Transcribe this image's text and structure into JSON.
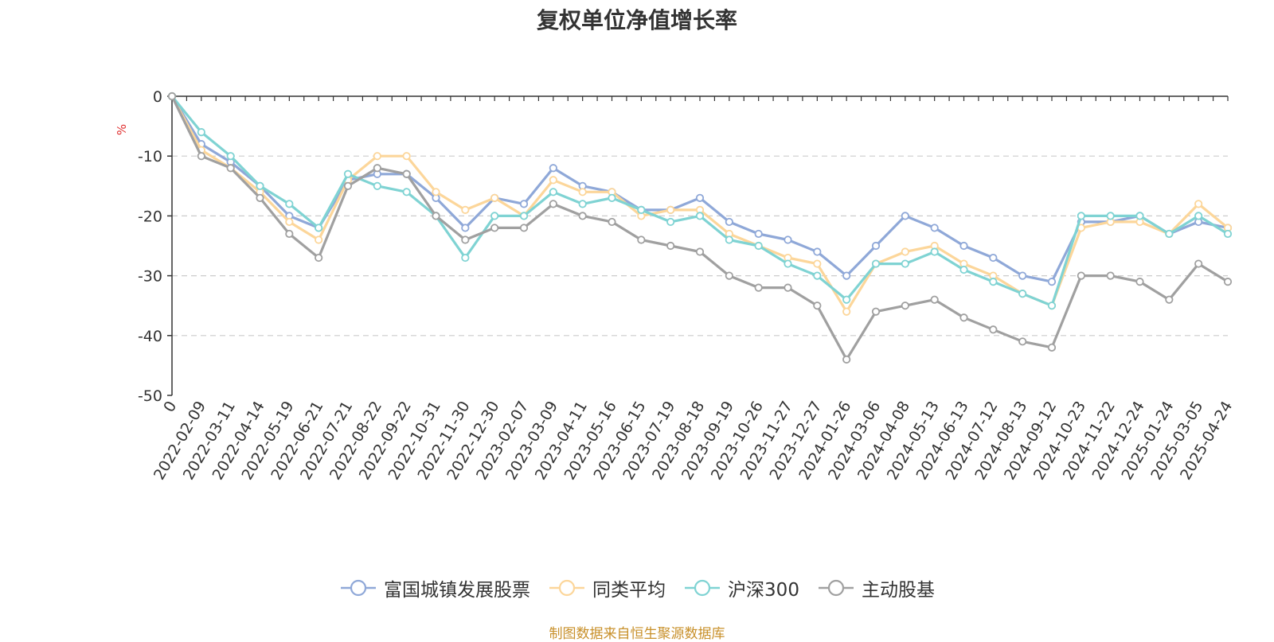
{
  "chart_data": {
    "type": "line",
    "title": "复权单位净值增长率",
    "ylabel": "%",
    "ylim": [
      -50,
      0
    ],
    "yticks": [
      0,
      -10,
      -20,
      -30,
      -40,
      -50
    ],
    "x_tick_labels": [
      "0",
      "2022-02-09",
      "2022-03-11",
      "2022-04-14",
      "2022-05-19",
      "2022-06-21",
      "2022-07-21",
      "2022-08-22",
      "2022-09-22",
      "2022-10-31",
      "2022-11-30",
      "2022-12-30",
      "2023-02-07",
      "2023-03-09",
      "2023-04-11",
      "2023-05-16",
      "2023-06-15",
      "2023-07-19",
      "2023-08-18",
      "2023-09-19",
      "2023-10-26",
      "2023-11-27",
      "2023-12-27",
      "2024-01-26",
      "2024-03-06",
      "2024-04-08",
      "2024-05-13",
      "2024-06-13",
      "2024-07-12",
      "2024-08-13",
      "2024-09-12",
      "2024-10-23",
      "2024-11-22",
      "2024-12-24",
      "2025-01-24",
      "2025-03-05",
      "2025-04-24"
    ],
    "grid": true,
    "legend_position": "bottom",
    "series": [
      {
        "name": "富国城镇发展股票",
        "color": "#8fa8d8",
        "values": [
          0,
          -8,
          -11,
          -15,
          -20,
          -22,
          -14,
          -13,
          -13,
          -17,
          -22,
          -17,
          -18,
          -12,
          -15,
          -16,
          -19,
          -19,
          -17,
          -21,
          -23,
          -24,
          -26,
          -30,
          -25,
          -20,
          -22,
          -25,
          -27,
          -30,
          -31,
          -21,
          -21,
          -20,
          -23,
          -21,
          -22
        ]
      },
      {
        "name": "同类平均",
        "color": "#fcd69a",
        "values": [
          0,
          -9,
          -12,
          -16,
          -21,
          -24,
          -14,
          -10,
          -10,
          -16,
          -19,
          -17,
          -20,
          -14,
          -16,
          -16,
          -20,
          -19,
          -19,
          -23,
          -25,
          -27,
          -28,
          -36,
          -28,
          -26,
          -25,
          -28,
          -30,
          -33,
          -35,
          -22,
          -21,
          -21,
          -23,
          -18,
          -22
        ]
      },
      {
        "name": "沪深300",
        "color": "#7fd3d3",
        "values": [
          0,
          -6,
          -10,
          -15,
          -18,
          -22,
          -13,
          -15,
          -16,
          -20,
          -27,
          -20,
          -20,
          -16,
          -18,
          -17,
          -19,
          -21,
          -20,
          -24,
          -25,
          -28,
          -30,
          -34,
          -28,
          -28,
          -26,
          -29,
          -31,
          -33,
          -35,
          -20,
          -20,
          -20,
          -23,
          -20,
          -23
        ]
      },
      {
        "name": "主动股基",
        "color": "#a0a0a0",
        "values": [
          0,
          -10,
          -12,
          -17,
          -23,
          -27,
          -15,
          -12,
          -13,
          -20,
          -24,
          -22,
          -22,
          -18,
          -20,
          -21,
          -24,
          -25,
          -26,
          -30,
          -32,
          -32,
          -35,
          -44,
          -36,
          -35,
          -34,
          -37,
          -39,
          -41,
          -42,
          -30,
          -30,
          -31,
          -34,
          -28,
          -31
        ]
      }
    ]
  },
  "source_text": "制图数据来自恒生聚源数据库"
}
